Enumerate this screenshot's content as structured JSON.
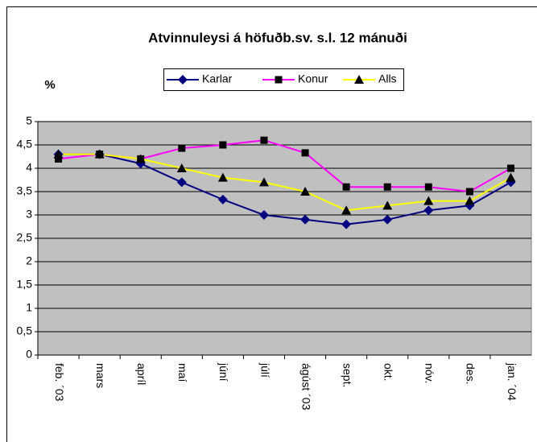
{
  "chart_data": {
    "type": "line",
    "title": "Atvinnuleysi á höfuðb.sv. s.l. 12 mánuði",
    "y_label": "%",
    "categories": [
      "feb. ´03",
      "mars",
      "apríl",
      "maí",
      "júní",
      "júlí",
      "ágúst ´03",
      "sept.",
      "okt.",
      "nóv.",
      "des.",
      "jan. ´04"
    ],
    "series": [
      {
        "name": "Karlar",
        "color": "#000080",
        "marker": "diamond",
        "marker_color": "#000080",
        "values": [
          4.3,
          4.3,
          4.1,
          3.7,
          3.33,
          3.0,
          2.9,
          2.8,
          2.9,
          3.1,
          3.2,
          3.7
        ]
      },
      {
        "name": "Konur",
        "color": "#ff00ff",
        "marker": "square",
        "marker_color": "#000000",
        "values": [
          4.2,
          4.3,
          4.2,
          4.43,
          4.5,
          4.6,
          4.33,
          3.6,
          3.6,
          3.6,
          3.5,
          4.0
        ]
      },
      {
        "name": "Alls",
        "color": "#ffff00",
        "marker": "triangle",
        "marker_color": "#000000",
        "values": [
          4.3,
          4.3,
          4.2,
          4.0,
          3.8,
          3.7,
          3.5,
          3.1,
          3.2,
          3.3,
          3.3,
          3.8
        ]
      }
    ],
    "ylim": [
      0,
      5
    ],
    "yticks": [
      0,
      {
        "value": 0.5,
        "label": "0,5"
      },
      1,
      {
        "value": 1.5,
        "label": "1,5"
      },
      2,
      {
        "value": 2.5,
        "label": "2,5"
      },
      3,
      {
        "value": 3.5,
        "label": "3,5"
      },
      4,
      {
        "value": 4.5,
        "label": "4,5"
      },
      5
    ],
    "grid": true,
    "plot_background": "#c0c0c0",
    "legend": "top"
  }
}
